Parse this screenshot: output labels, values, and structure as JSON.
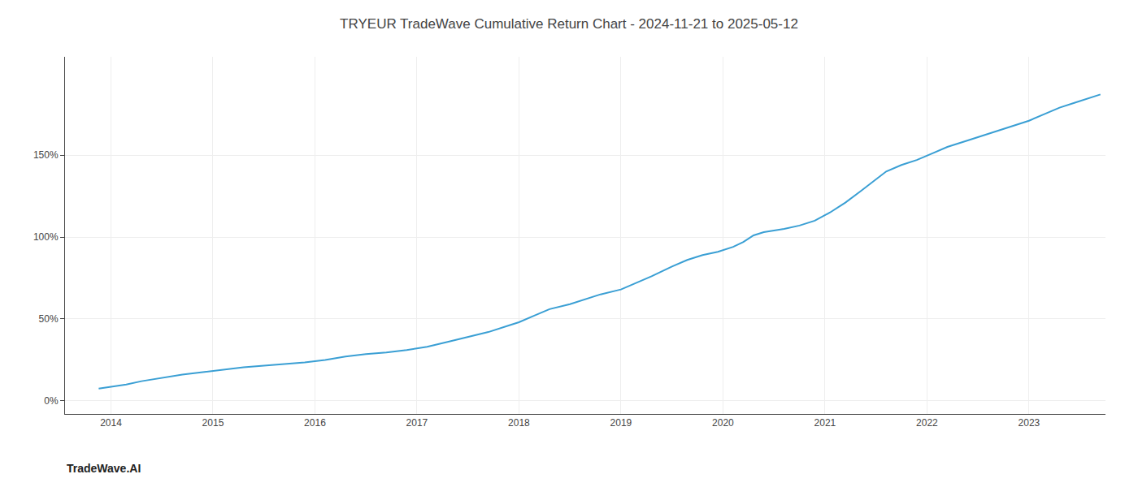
{
  "chart_data": {
    "type": "line",
    "title": "TRYEUR TradeWave Cumulative Return Chart - 2024-11-21 to 2025-05-12",
    "annotations": [
      "TradeWave.AI"
    ],
    "x": [
      2013.88,
      2014.0,
      2014.15,
      2014.3,
      2014.5,
      2014.7,
      2014.9,
      2015.1,
      2015.3,
      2015.5,
      2015.7,
      2015.9,
      2016.1,
      2016.3,
      2016.5,
      2016.7,
      2016.9,
      2017.1,
      2017.3,
      2017.5,
      2017.7,
      2017.9,
      2018.0,
      2018.15,
      2018.3,
      2018.5,
      2018.65,
      2018.8,
      2019.0,
      2019.15,
      2019.3,
      2019.5,
      2019.65,
      2019.8,
      2019.95,
      2020.1,
      2020.2,
      2020.3,
      2020.4,
      2020.5,
      2020.6,
      2020.75,
      2020.9,
      2021.05,
      2021.2,
      2021.35,
      2021.5,
      2021.6,
      2021.75,
      2021.9,
      2022.05,
      2022.2,
      2022.4,
      2022.6,
      2022.8,
      2023.0,
      2023.15,
      2023.3,
      2023.45,
      2023.6,
      2023.7
    ],
    "values": [
      7.5,
      8.5,
      10,
      12,
      14,
      16,
      17.5,
      19,
      20.5,
      21.5,
      22.5,
      23.5,
      25,
      27,
      28.5,
      29.5,
      31,
      33,
      36,
      39,
      42,
      46,
      48,
      52,
      56,
      59,
      62,
      65,
      68,
      72,
      76,
      82,
      86,
      89,
      91,
      94,
      97,
      101,
      103,
      104,
      105,
      107,
      110,
      115,
      121,
      128,
      135,
      140,
      144,
      147,
      151,
      155,
      159,
      163,
      167,
      171,
      175,
      179,
      182,
      185,
      187
    ],
    "color": "#3a9fd4",
    "xlim": [
      2013.55,
      2023.75
    ],
    "xticks": [
      2014,
      2015,
      2016,
      2017,
      2018,
      2019,
      2020,
      2021,
      2022,
      2023
    ],
    "ylim": [
      -8,
      210
    ],
    "yticks": [
      {
        "value": 0,
        "label": "0%"
      },
      {
        "value": 50,
        "label": "50%"
      },
      {
        "value": 100,
        "label": "100%"
      },
      {
        "value": 150,
        "label": "150%"
      }
    ],
    "grid": true
  }
}
